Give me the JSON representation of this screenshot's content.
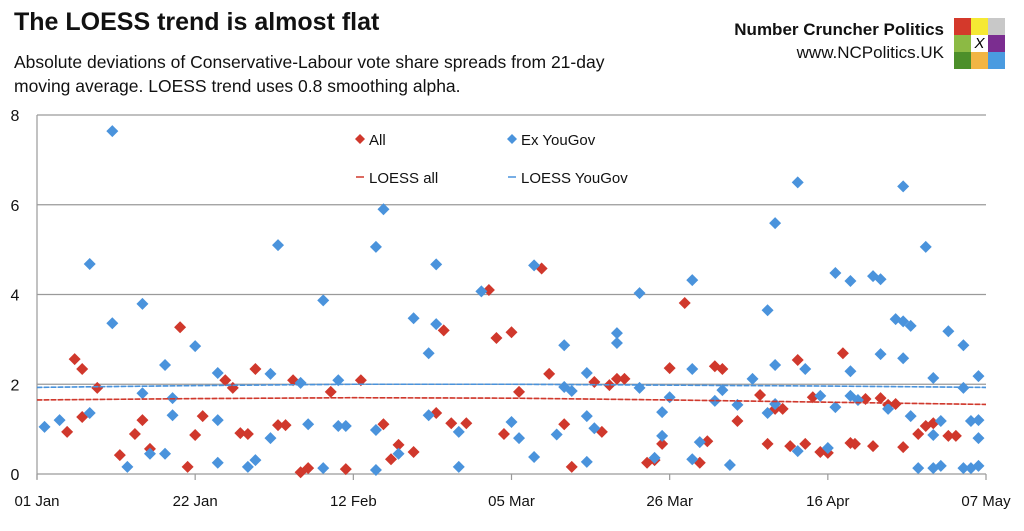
{
  "header": {
    "title": "The LOESS trend is almost flat",
    "subtitle": "Absolute deviations of Conservative-Labour vote share spreads from 21-day moving average. LOESS trend uses 0.8 smoothing alpha."
  },
  "brand": {
    "name": "Number Cruncher Politics",
    "url": "www.NCPolitics.UK",
    "logo_mark": "X",
    "logo_colors": [
      "#d4392b",
      "#f5e933",
      "#c8c8c8",
      "#8cba44",
      "#ffffff",
      "#7b2d90",
      "#4c8f2a",
      "#f2b544",
      "#4a9be0"
    ]
  },
  "chart_data": {
    "type": "scatter",
    "title": "",
    "xlabel": "",
    "ylabel": "",
    "x_ticks": [
      "01 Jan",
      "22 Jan",
      "12 Feb",
      "05 Mar",
      "26 Mar",
      "16 Apr",
      "07 May"
    ],
    "x_tick_days": [
      0,
      21,
      42,
      63,
      84,
      105,
      126
    ],
    "xlim_days_from_01_Jan": [
      0,
      126
    ],
    "ylim": [
      0,
      8
    ],
    "y_ticks": [
      "0",
      "2",
      "4",
      "6",
      "8"
    ],
    "y_tick_values": [
      0,
      2,
      4,
      6,
      8
    ],
    "grid": "horizontal",
    "legend_placement": "top-center",
    "colors": {
      "all": "#d0382c",
      "exyougov": "#4a93dc",
      "loess_all": "#d0382c",
      "loess_yougov": "#4a93dc"
    },
    "series": [
      {
        "name": "All",
        "kind": "scatter",
        "points": [
          [
            4,
            0.94
          ],
          [
            5,
            2.56
          ],
          [
            6,
            2.34
          ],
          [
            6,
            1.27
          ],
          [
            8,
            1.92
          ],
          [
            11,
            0.42
          ],
          [
            13,
            0.89
          ],
          [
            14,
            1.2
          ],
          [
            15,
            0.56
          ],
          [
            19,
            3.27
          ],
          [
            20,
            0.16
          ],
          [
            21,
            0.87
          ],
          [
            22,
            1.29
          ],
          [
            25,
            2.09
          ],
          [
            26,
            1.92
          ],
          [
            27,
            0.91
          ],
          [
            28,
            0.89
          ],
          [
            29,
            2.34
          ],
          [
            32,
            1.09
          ],
          [
            33,
            1.09
          ],
          [
            34,
            2.09
          ],
          [
            35,
            0.04
          ],
          [
            36,
            0.13
          ],
          [
            39,
            1.83
          ],
          [
            41,
            0.11
          ],
          [
            43,
            2.09
          ],
          [
            46,
            1.11
          ],
          [
            47,
            0.33
          ],
          [
            48,
            0.65
          ],
          [
            50,
            0.49
          ],
          [
            53,
            1.36
          ],
          [
            54,
            3.2
          ],
          [
            55,
            1.13
          ],
          [
            57,
            1.13
          ],
          [
            60,
            4.1
          ],
          [
            61,
            3.03
          ],
          [
            62,
            0.89
          ],
          [
            63,
            3.16
          ],
          [
            64,
            1.83
          ],
          [
            67,
            4.58
          ],
          [
            68,
            2.23
          ],
          [
            70,
            1.11
          ],
          [
            71,
            0.16
          ],
          [
            74,
            2.05
          ],
          [
            75,
            0.94
          ],
          [
            76,
            1.98
          ],
          [
            77,
            2.12
          ],
          [
            78,
            2.12
          ],
          [
            81,
            0.25
          ],
          [
            82,
            0.31
          ],
          [
            83,
            0.67
          ],
          [
            84,
            2.36
          ],
          [
            86,
            3.81
          ],
          [
            88,
            0.25
          ],
          [
            89,
            0.73
          ],
          [
            90,
            2.4
          ],
          [
            91,
            2.34
          ],
          [
            93,
            1.18
          ],
          [
            96,
            1.76
          ],
          [
            97,
            0.67
          ],
          [
            98,
            1.45
          ],
          [
            99,
            1.45
          ],
          [
            100,
            0.62
          ],
          [
            101,
            2.54
          ],
          [
            102,
            0.67
          ],
          [
            103,
            1.71
          ],
          [
            104,
            0.49
          ],
          [
            105,
            0.47
          ],
          [
            107,
            2.69
          ],
          [
            108,
            0.69
          ],
          [
            108.6,
            0.67
          ],
          [
            110,
            1.67
          ],
          [
            111,
            0.62
          ],
          [
            112,
            1.69
          ],
          [
            113,
            1.54
          ],
          [
            114,
            1.56
          ],
          [
            115,
            0.6
          ],
          [
            117,
            0.89
          ],
          [
            118,
            1.07
          ],
          [
            119,
            1.13
          ],
          [
            121,
            0.85
          ],
          [
            122,
            0.85
          ]
        ]
      },
      {
        "name": "Ex YouGov",
        "kind": "scatter",
        "points": [
          [
            1,
            1.05
          ],
          [
            3,
            1.2
          ],
          [
            7,
            4.68
          ],
          [
            7,
            1.36
          ],
          [
            10,
            7.64
          ],
          [
            10,
            3.36
          ],
          [
            12,
            0.16
          ],
          [
            14,
            3.79
          ],
          [
            14,
            1.8
          ],
          [
            15,
            0.45
          ],
          [
            17,
            2.43
          ],
          [
            17,
            0.45
          ],
          [
            18,
            1.69
          ],
          [
            18,
            1.31
          ],
          [
            21,
            2.85
          ],
          [
            24,
            2.25
          ],
          [
            24,
            1.2
          ],
          [
            24,
            0.25
          ],
          [
            28,
            0.16
          ],
          [
            29,
            0.31
          ],
          [
            31,
            2.23
          ],
          [
            31,
            0.8
          ],
          [
            32,
            5.1
          ],
          [
            35,
            2.03
          ],
          [
            36,
            1.11
          ],
          [
            38,
            3.87
          ],
          [
            38,
            0.13
          ],
          [
            40,
            2.09
          ],
          [
            40,
            1.07
          ],
          [
            41,
            1.07
          ],
          [
            45,
            5.06
          ],
          [
            45,
            0.98
          ],
          [
            45,
            0.09
          ],
          [
            46,
            5.9
          ],
          [
            48,
            0.45
          ],
          [
            50,
            3.47
          ],
          [
            52,
            2.69
          ],
          [
            52,
            1.31
          ],
          [
            53,
            4.67
          ],
          [
            53,
            3.34
          ],
          [
            56,
            0.94
          ],
          [
            56,
            0.16
          ],
          [
            59,
            4.07
          ],
          [
            63,
            1.16
          ],
          [
            64,
            0.8
          ],
          [
            66,
            4.65
          ],
          [
            66,
            0.38
          ],
          [
            69,
            0.88
          ],
          [
            70,
            2.87
          ],
          [
            70,
            1.94
          ],
          [
            71,
            1.85
          ],
          [
            73,
            2.25
          ],
          [
            73,
            1.29
          ],
          [
            73,
            0.27
          ],
          [
            74,
            1.02
          ],
          [
            77,
            3.14
          ],
          [
            77,
            2.92
          ],
          [
            80,
            4.03
          ],
          [
            80,
            1.92
          ],
          [
            82,
            0.36
          ],
          [
            83,
            1.38
          ],
          [
            83,
            0.85
          ],
          [
            84,
            1.71
          ],
          [
            87,
            4.32
          ],
          [
            87,
            2.34
          ],
          [
            87,
            0.33
          ],
          [
            88,
            0.71
          ],
          [
            90,
            1.63
          ],
          [
            91,
            1.87
          ],
          [
            92,
            0.2
          ],
          [
            93,
            1.54
          ],
          [
            95,
            2.12
          ],
          [
            97,
            3.65
          ],
          [
            97,
            1.36
          ],
          [
            98,
            5.59
          ],
          [
            98,
            2.43
          ],
          [
            98,
            1.56
          ],
          [
            101,
            6.5
          ],
          [
            101,
            0.51
          ],
          [
            102,
            2.34
          ],
          [
            104,
            1.74
          ],
          [
            105,
            0.58
          ],
          [
            106,
            4.48
          ],
          [
            106,
            1.49
          ],
          [
            108,
            4.3
          ],
          [
            108,
            2.29
          ],
          [
            108,
            1.74
          ],
          [
            109,
            1.65
          ],
          [
            111,
            4.41
          ],
          [
            112,
            4.34
          ],
          [
            112,
            2.67
          ],
          [
            113,
            1.45
          ],
          [
            114,
            3.45
          ],
          [
            115,
            3.4
          ],
          [
            115,
            2.58
          ],
          [
            115,
            6.41
          ],
          [
            116,
            3.3
          ],
          [
            116,
            1.29
          ],
          [
            117,
            0.13
          ],
          [
            118,
            5.06
          ],
          [
            119,
            2.14
          ],
          [
            119,
            0.87
          ],
          [
            119,
            0.13
          ],
          [
            120,
            1.18
          ],
          [
            120,
            0.18
          ],
          [
            121,
            3.18
          ],
          [
            123,
            2.87
          ],
          [
            123,
            1.92
          ],
          [
            123,
            0.13
          ],
          [
            124,
            1.18
          ],
          [
            124,
            0.13
          ],
          [
            125,
            2.18
          ],
          [
            125,
            1.2
          ],
          [
            125,
            0.8
          ],
          [
            125,
            0.18
          ]
        ]
      },
      {
        "name": "LOESS all",
        "kind": "line",
        "points": [
          [
            0,
            1.65
          ],
          [
            21,
            1.68
          ],
          [
            42,
            1.7
          ],
          [
            63,
            1.69
          ],
          [
            84,
            1.65
          ],
          [
            105,
            1.6
          ],
          [
            126,
            1.55
          ]
        ]
      },
      {
        "name": "LOESS YouGov",
        "kind": "line",
        "points": [
          [
            0,
            1.93
          ],
          [
            21,
            1.97
          ],
          [
            42,
            2.0
          ],
          [
            63,
            2.0
          ],
          [
            84,
            1.98
          ],
          [
            105,
            1.96
          ],
          [
            126,
            1.93
          ]
        ]
      }
    ]
  }
}
